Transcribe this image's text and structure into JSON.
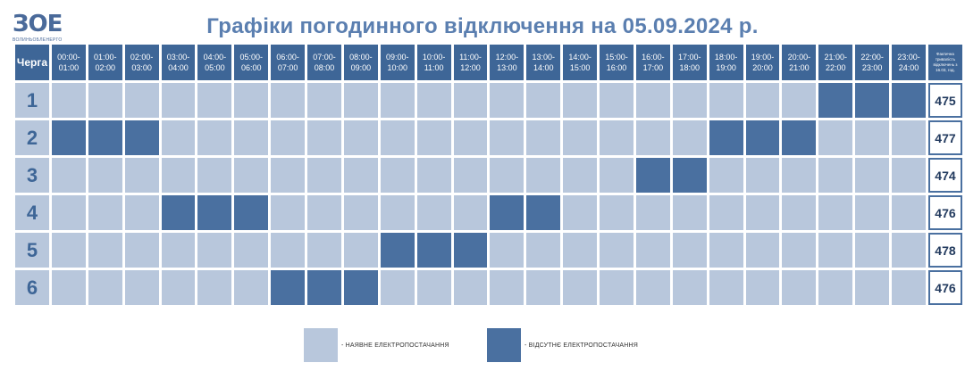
{
  "header": {
    "logo_mark": "ЗОЕ",
    "logo_sub": "ВОЛИНЬОБЛЕНЕРГО",
    "title": "Графіки погодинного відключення на 05.09.2024 р."
  },
  "table": {
    "queue_header": "Черга",
    "duration_header": "Фактична тривалість відключень з 16.03, год.",
    "hours": [
      "00:00-\n01:00",
      "01:00-\n02:00",
      "02:00-\n03:00",
      "03:00-\n04:00",
      "04:00-\n05:00",
      "05:00-\n06:00",
      "06:00-\n07:00",
      "07:00-\n08:00",
      "08:00-\n09:00",
      "09:00-\n10:00",
      "10:00-\n11:00",
      "11:00-\n12:00",
      "12:00-\n13:00",
      "13:00-\n14:00",
      "14:00-\n15:00",
      "15:00-\n16:00",
      "16:00-\n17:00",
      "17:00-\n18:00",
      "18:00-\n19:00",
      "19:00-\n20:00",
      "20:00-\n21:00",
      "21:00-\n22:00",
      "22:00-\n23:00",
      "23:00-\n24:00"
    ],
    "rows": [
      {
        "queue": "1",
        "total": "475",
        "off_hours": [
          21,
          22,
          23
        ]
      },
      {
        "queue": "2",
        "total": "477",
        "off_hours": [
          0,
          1,
          2,
          18,
          19,
          20
        ]
      },
      {
        "queue": "3",
        "total": "474",
        "off_hours": [
          16,
          17
        ]
      },
      {
        "queue": "4",
        "total": "476",
        "off_hours": [
          3,
          4,
          5,
          12,
          13
        ]
      },
      {
        "queue": "5",
        "total": "478",
        "off_hours": [
          9,
          10,
          11
        ]
      },
      {
        "queue": "6",
        "total": "476",
        "off_hours": [
          6,
          7,
          8
        ]
      }
    ]
  },
  "legend": {
    "on_label": "- НАЯВНЕ ЕЛЕКТРОПОСТАЧАННЯ",
    "off_label": "- ВІДСУТНЄ ЕЛЕКТРОПОСТАЧАННЯ",
    "on_color": "#b8c7dc",
    "off_color": "#4a70a0"
  }
}
